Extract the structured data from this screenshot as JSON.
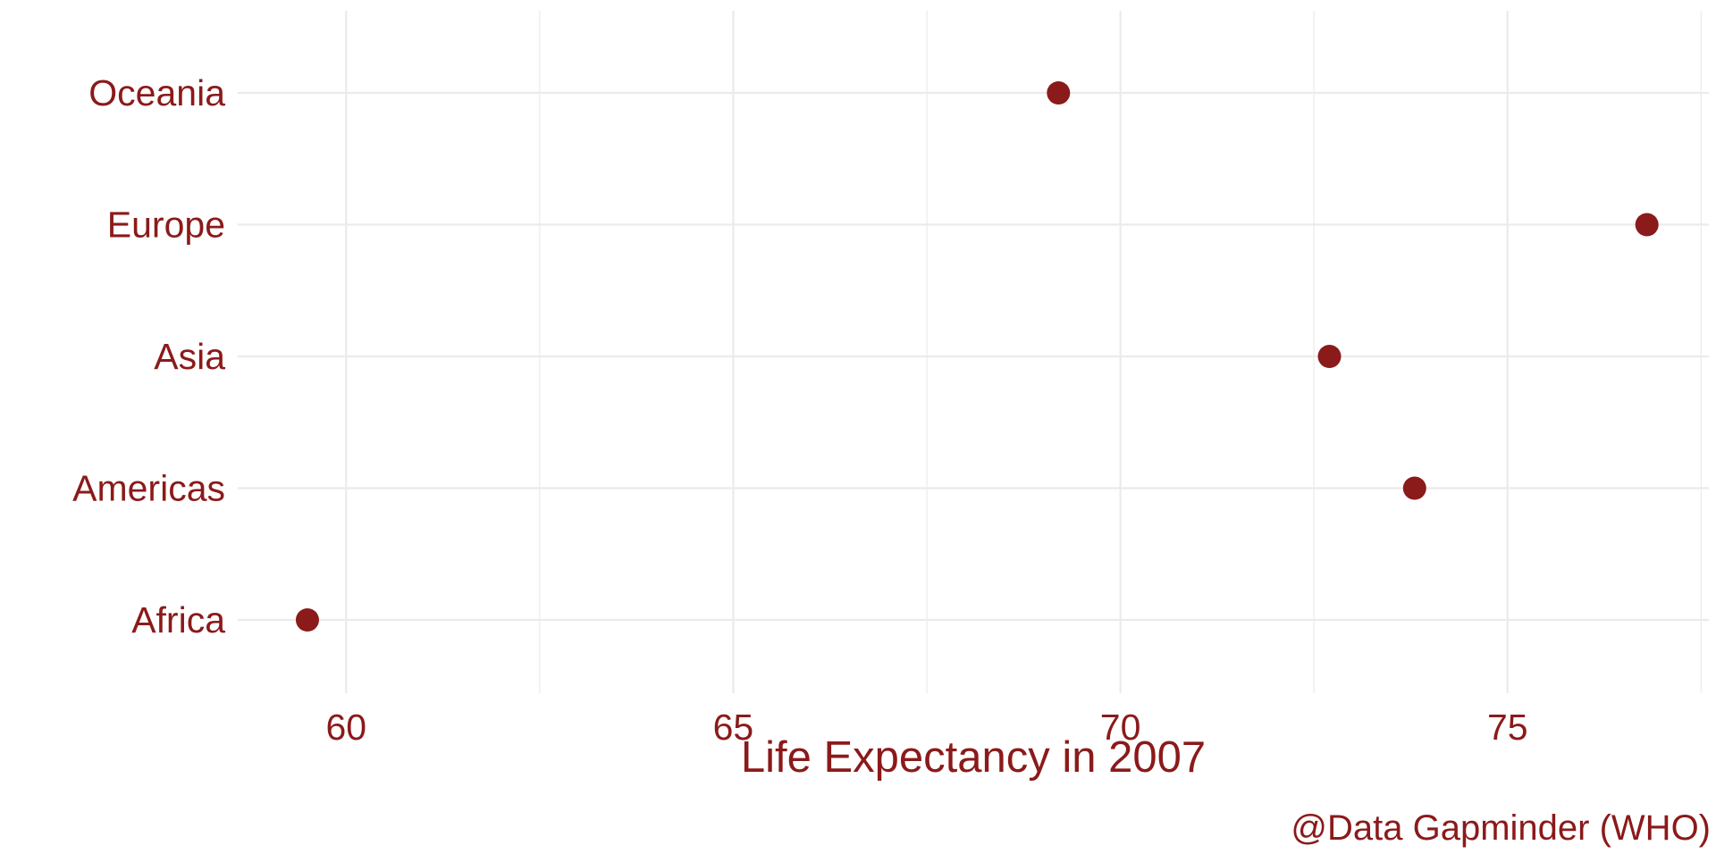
{
  "chart_data": {
    "type": "scatter",
    "subtype": "dot-plot",
    "categories": [
      "Africa",
      "Americas",
      "Asia",
      "Europe",
      "Oceania"
    ],
    "values": [
      59.5,
      73.8,
      72.7,
      76.8,
      69.2
    ],
    "title": "",
    "xlabel": "Life Expectancy in 2007",
    "ylabel": "",
    "caption": "@Data Gapminder (WHO)",
    "xticks": [
      60,
      65,
      70,
      75
    ],
    "xlim": [
      58.6,
      77.6
    ],
    "grid": true,
    "legend": "none",
    "colors": {
      "text": "#8b1a1a",
      "point": "#8b1a1a",
      "grid": "#ebebeb"
    }
  }
}
